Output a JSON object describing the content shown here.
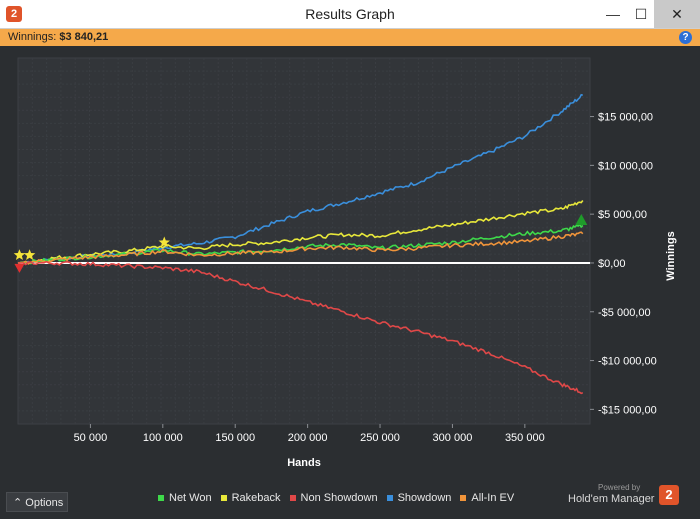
{
  "window": {
    "title": "Results Graph",
    "app_icon_glyph": "2",
    "minimize_glyph": "—",
    "maximize_glyph": "☐",
    "close_glyph": "✕"
  },
  "infobar": {
    "label": "Winnings:",
    "value": "$3 840,21",
    "help_glyph": "?"
  },
  "footer": {
    "options_label": "Options",
    "options_icon": "chevron-up-icon",
    "powered_by": "Powered by",
    "brand": "Hold'em Manager",
    "brand_logo_glyph": "2"
  },
  "chart_data": {
    "type": "line",
    "xlabel": "Hands",
    "ylabel": "Winnings",
    "xlim": [
      0,
      395000
    ],
    "ylim": [
      -16500,
      21000
    ],
    "x_ticks": [
      50000,
      100000,
      150000,
      200000,
      250000,
      300000,
      350000
    ],
    "x_tick_labels": [
      "50 000",
      "100 000",
      "150 000",
      "200 000",
      "250 000",
      "300 000",
      "350 000"
    ],
    "y_ticks": [
      15000,
      10000,
      5000,
      0,
      -5000,
      -10000,
      -15000
    ],
    "y_tick_labels": [
      "$15 000,00",
      "$10 000,00",
      "$5 000,00",
      "$0,00",
      "-$5 000,00",
      "-$10 000,00",
      "-$15 000,00"
    ],
    "grid": true,
    "background": "#323539",
    "series": [
      {
        "name": "Showdown",
        "color": "#3a8fdc",
        "x": [
          0,
          25000,
          50000,
          75000,
          100000,
          125000,
          150000,
          175000,
          200000,
          225000,
          250000,
          275000,
          300000,
          325000,
          350000,
          375000,
          390000
        ],
        "y": [
          0,
          400,
          700,
          1000,
          1600,
          2000,
          2700,
          4000,
          5300,
          6200,
          7200,
          8200,
          9800,
          11300,
          13000,
          15500,
          17200
        ]
      },
      {
        "name": "Rakeback",
        "color": "#e8e83a",
        "x": [
          0,
          25000,
          50000,
          75000,
          100000,
          125000,
          150000,
          175000,
          200000,
          225000,
          250000,
          275000,
          300000,
          325000,
          350000,
          375000,
          390000
        ],
        "y": [
          0,
          500,
          900,
          1200,
          1700,
          1500,
          1900,
          2100,
          2600,
          2900,
          2800,
          3400,
          3900,
          4500,
          5100,
          5500,
          6400
        ]
      },
      {
        "name": "Net Won",
        "color": "#3ed94a",
        "x": [
          0,
          25000,
          50000,
          75000,
          100000,
          125000,
          150000,
          175000,
          200000,
          225000,
          250000,
          275000,
          300000,
          325000,
          350000,
          375000,
          390000
        ],
        "y": [
          0,
          350,
          650,
          900,
          1300,
          900,
          1100,
          1300,
          1700,
          1900,
          1500,
          1800,
          2100,
          2600,
          3000,
          3300,
          3840
        ]
      },
      {
        "name": "All-In EV",
        "color": "#f0943a",
        "x": [
          0,
          25000,
          50000,
          75000,
          100000,
          125000,
          150000,
          175000,
          200000,
          225000,
          250000,
          275000,
          300000,
          325000,
          350000,
          375000,
          390000
        ],
        "y": [
          0,
          300,
          600,
          850,
          1200,
          800,
          1000,
          1100,
          1500,
          1600,
          1300,
          1500,
          1800,
          2000,
          2200,
          2700,
          3000
        ]
      },
      {
        "name": "Non Showdown",
        "color": "#e04848",
        "x": [
          0,
          25000,
          50000,
          75000,
          100000,
          125000,
          150000,
          175000,
          200000,
          225000,
          250000,
          275000,
          300000,
          325000,
          350000,
          375000,
          390000
        ],
        "y": [
          0,
          0,
          -100,
          -300,
          -500,
          -900,
          -1900,
          -2900,
          -4000,
          -5000,
          -6100,
          -7000,
          -8000,
          -9200,
          -10700,
          -12400,
          -13300
        ]
      }
    ],
    "markers": [
      {
        "kind": "star",
        "x": 1000,
        "y": 800,
        "color": "#f5e43a"
      },
      {
        "kind": "star",
        "x": 8000,
        "y": 800,
        "color": "#f5e43a"
      },
      {
        "kind": "star",
        "x": 101000,
        "y": 2100,
        "color": "#f5e43a"
      },
      {
        "kind": "triangle-down",
        "x": 1000,
        "y": -500,
        "color": "#e03030"
      },
      {
        "kind": "triangle-up",
        "x": 389000,
        "y": 4400,
        "color": "#1f9b2a"
      }
    ],
    "zero_line_color": "#ffffff",
    "legend_position": "bottom",
    "legend_order": [
      "Net Won",
      "Rakeback",
      "Non Showdown",
      "Showdown",
      "All-In EV"
    ]
  }
}
